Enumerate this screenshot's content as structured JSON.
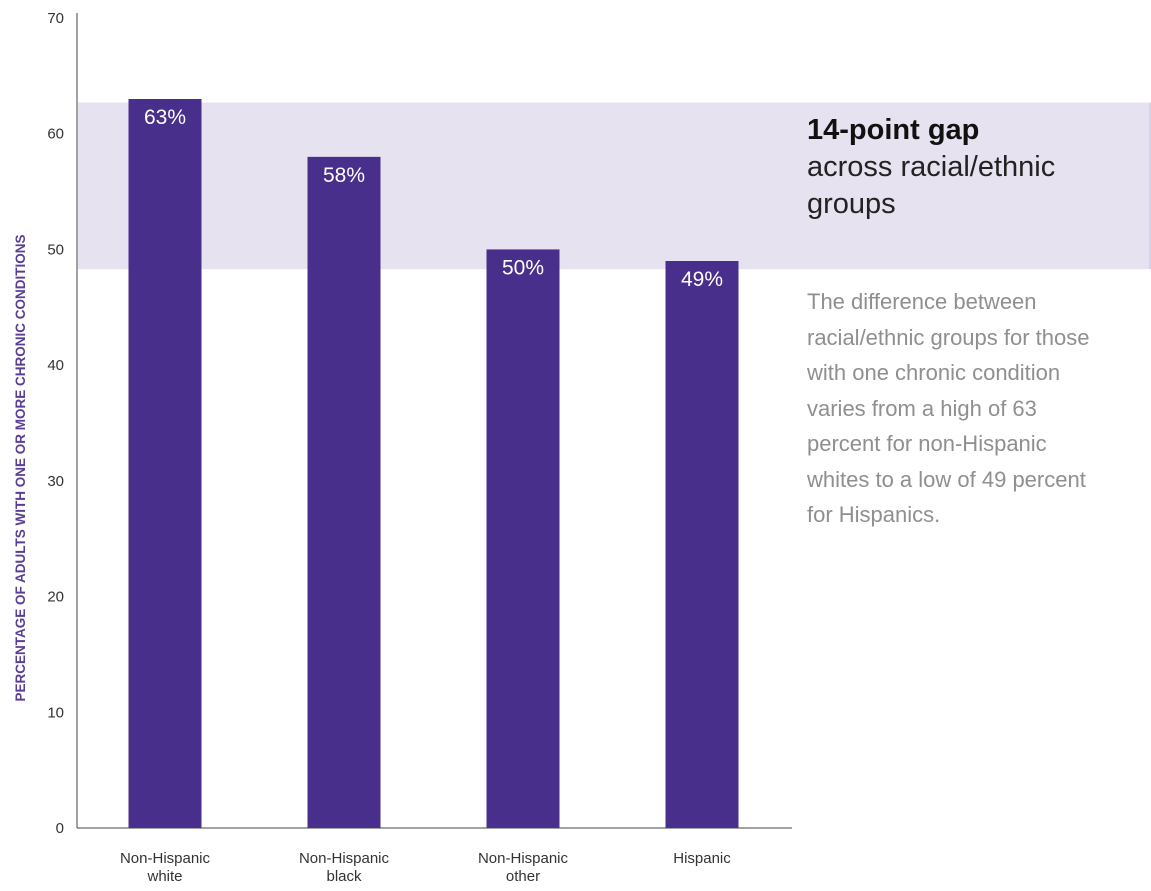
{
  "colors": {
    "bar": "#482f8b",
    "band": "#e6e2f0",
    "band_edge": "#d8d2e8",
    "axis_label": "#5a3e96"
  },
  "chart_data": {
    "type": "bar",
    "categories": [
      [
        "Non-Hispanic",
        "white"
      ],
      [
        "Non-Hispanic",
        "black"
      ],
      [
        "Non-Hispanic",
        "other"
      ],
      [
        "Hispanic"
      ]
    ],
    "values": [
      63,
      58,
      50,
      49
    ],
    "value_labels": [
      "63%",
      "58%",
      "50%",
      "49%"
    ],
    "ylabel": "PERCENTAGE OF ADULTS WITH ONE OR MORE CHRONIC CONDITIONS",
    "ylim": [
      0,
      70
    ],
    "yticks": [
      0,
      10,
      20,
      30,
      40,
      50,
      60,
      70
    ],
    "highlight_band": [
      48.3,
      62.7
    ],
    "grid": false
  },
  "annotation": {
    "title": "14-point gap",
    "subtitle_line1": "across racial/ethnic",
    "subtitle_line2": "groups",
    "body_lines": [
      "The difference between",
      "racial/ethnic groups for those",
      "with one chronic condition",
      "varies from a high of 63",
      "percent for non-Hispanic",
      "whites to a low of 49 percent",
      "for Hispanics."
    ]
  }
}
